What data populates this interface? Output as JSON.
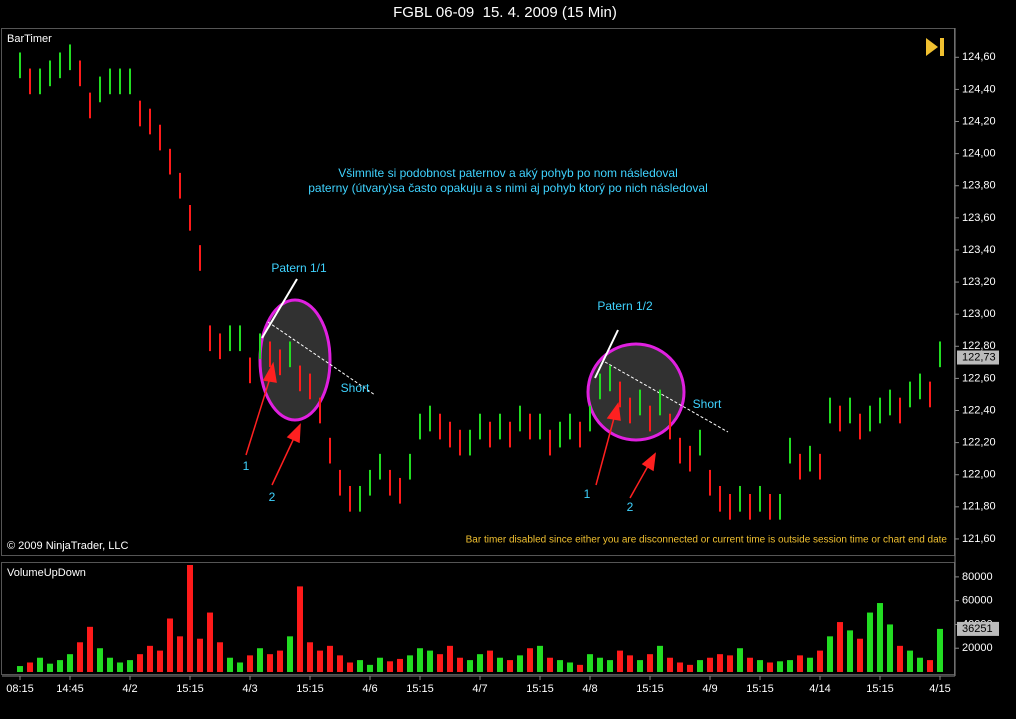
{
  "chart_data": [
    {
      "type": "hilo",
      "title": "FGBL 06-09  15. 4. 2009 (15 Min)",
      "label": "BarTimer",
      "copyright": "© 2009 NinjaTrader, LLC",
      "status": "Bar timer disabled since either you are disconnected or current time is outside session time or chart end date",
      "annotations": [
        "Všimnite si podobnost paternov a aký pohyb po nom následoval",
        "paterny (útvary)sa často opakuju a s nimi aj pohyb ktorý po nich následoval",
        "Patern 1/1",
        "Patern 1/2",
        "Short",
        "Short",
        "1",
        "2",
        "1",
        "2"
      ],
      "up_color": "#22dd22",
      "down_color": "#ff1a1a",
      "high": [
        124.63,
        124.53,
        124.53,
        124.58,
        124.63,
        124.68,
        124.58,
        124.38,
        124.48,
        124.53,
        124.53,
        124.53,
        124.33,
        124.28,
        124.18,
        124.03,
        123.88,
        123.68,
        123.43,
        122.93,
        122.88,
        122.93,
        122.93,
        122.73,
        122.88,
        122.83,
        122.78,
        122.83,
        122.68,
        122.63,
        122.48,
        122.23,
        122.03,
        121.93,
        121.93,
        122.03,
        122.13,
        122.03,
        121.98,
        122.13,
        122.38,
        122.43,
        122.38,
        122.33,
        122.28,
        122.28,
        122.38,
        122.33,
        122.38,
        122.33,
        122.43,
        122.38,
        122.38,
        122.28,
        122.33,
        122.38,
        122.33,
        122.43,
        122.63,
        122.68,
        122.58,
        122.48,
        122.53,
        122.43,
        122.53,
        122.38,
        122.23,
        122.18,
        122.28,
        122.03,
        121.93,
        121.88,
        121.93,
        121.88,
        121.93,
        121.88,
        121.88,
        122.23,
        122.13,
        122.18,
        122.13,
        122.48,
        122.43,
        122.48,
        122.38,
        122.43,
        122.48,
        122.53,
        122.48,
        122.58,
        122.63,
        122.58,
        122.83
      ],
      "low": [
        124.47,
        124.37,
        124.37,
        124.42,
        124.47,
        124.52,
        124.42,
        124.22,
        124.32,
        124.37,
        124.37,
        124.37,
        124.17,
        124.12,
        124.02,
        123.87,
        123.72,
        123.52,
        123.27,
        122.77,
        122.72,
        122.77,
        122.77,
        122.57,
        122.72,
        122.67,
        122.62,
        122.67,
        122.52,
        122.47,
        122.32,
        122.07,
        121.87,
        121.77,
        121.77,
        121.87,
        121.97,
        121.87,
        121.82,
        121.97,
        122.22,
        122.27,
        122.22,
        122.17,
        122.12,
        122.12,
        122.22,
        122.17,
        122.22,
        122.17,
        122.27,
        122.22,
        122.22,
        122.12,
        122.17,
        122.22,
        122.17,
        122.27,
        122.47,
        122.52,
        122.42,
        122.32,
        122.37,
        122.27,
        122.37,
        122.22,
        122.07,
        122.02,
        122.12,
        121.87,
        121.77,
        121.72,
        121.77,
        121.72,
        121.77,
        121.72,
        121.72,
        122.07,
        121.97,
        122.02,
        121.97,
        122.32,
        122.27,
        122.32,
        122.22,
        122.27,
        122.32,
        122.37,
        122.32,
        122.42,
        122.47,
        122.42,
        122.67
      ],
      "last_price": {
        "value": 122.73,
        "label": "122,73"
      },
      "ylim": [
        121.5,
        124.77
      ],
      "yticks": [
        {
          "value": 124.6,
          "label": "124,60"
        },
        {
          "value": 124.4,
          "label": "124,40"
        },
        {
          "value": 124.2,
          "label": "124,20"
        },
        {
          "value": 124.0,
          "label": "124,00"
        },
        {
          "value": 123.8,
          "label": "123,80"
        },
        {
          "value": 123.6,
          "label": "123,60"
        },
        {
          "value": 123.4,
          "label": "123,40"
        },
        {
          "value": 123.2,
          "label": "123,20"
        },
        {
          "value": 123.0,
          "label": "123,00"
        },
        {
          "value": 122.8,
          "label": "122,80"
        },
        {
          "value": 122.6,
          "label": "122,60"
        },
        {
          "value": 122.4,
          "label": "122,40"
        },
        {
          "value": 122.2,
          "label": "122,20"
        },
        {
          "value": 122.0,
          "label": "122,00"
        },
        {
          "value": 121.8,
          "label": "121,80"
        },
        {
          "value": 121.6,
          "label": "121,60"
        }
      ]
    },
    {
      "type": "bar",
      "label": "VolumeUpDown",
      "categories": [
        "08:15",
        null,
        null,
        null,
        null,
        "14:45",
        null,
        null,
        null,
        null,
        null,
        "4/2",
        null,
        null,
        null,
        null,
        null,
        "15:15",
        null,
        null,
        null,
        null,
        null,
        "4/3",
        null,
        null,
        null,
        null,
        null,
        "15:15",
        null,
        null,
        null,
        null,
        null,
        "4/6",
        null,
        null,
        null,
        null,
        "15:15",
        null,
        null,
        null,
        null,
        null,
        "4/7",
        null,
        null,
        null,
        null,
        null,
        "15:15",
        null,
        null,
        null,
        null,
        "4/8",
        null,
        null,
        null,
        null,
        null,
        "15:15",
        null,
        null,
        null,
        null,
        null,
        "4/9",
        null,
        null,
        null,
        null,
        "15:15",
        null,
        null,
        null,
        null,
        null,
        "4/14",
        null,
        null,
        null,
        null,
        null,
        "15:15",
        null,
        null,
        null,
        null,
        null,
        "4/15"
      ],
      "values": [
        5000,
        8000,
        12000,
        7000,
        10000,
        15000,
        25000,
        38000,
        20000,
        12000,
        8000,
        10000,
        15000,
        22000,
        18000,
        45000,
        30000,
        90000,
        28000,
        50000,
        25000,
        12000,
        8000,
        14000,
        20000,
        15000,
        18000,
        30000,
        72000,
        25000,
        18000,
        22000,
        14000,
        8000,
        10000,
        6000,
        12000,
        9000,
        11000,
        14000,
        20000,
        18000,
        15000,
        22000,
        12000,
        10000,
        15000,
        18000,
        12000,
        10000,
        14000,
        20000,
        22000,
        12000,
        10000,
        8000,
        6000,
        15000,
        12000,
        10000,
        18000,
        14000,
        10000,
        15000,
        22000,
        12000,
        8000,
        6000,
        10000,
        12000,
        15000,
        14000,
        20000,
        12000,
        10000,
        8000,
        9000,
        10000,
        14000,
        12000,
        18000,
        30000,
        42000,
        35000,
        28000,
        50000,
        58000,
        40000,
        22000,
        18000,
        12000,
        10000,
        36251
      ],
      "ylim": [
        0,
        90000
      ],
      "yticks": [
        20000,
        40000,
        60000,
        80000
      ]
    }
  ]
}
